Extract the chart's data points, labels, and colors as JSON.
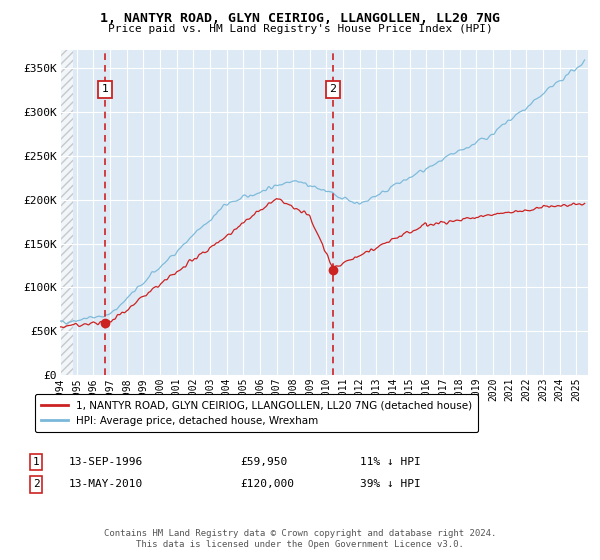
{
  "title": "1, NANTYR ROAD, GLYN CEIRIOG, LLANGOLLEN, LL20 7NG",
  "subtitle": "Price paid vs. HM Land Registry's House Price Index (HPI)",
  "hpi_color": "#7ab8d9",
  "price_color": "#cc2222",
  "marker_color": "#cc2222",
  "annotation_color": "#cc2222",
  "background_color": "#ddeaf5",
  "ylim": [
    0,
    370000
  ],
  "yticks": [
    0,
    50000,
    100000,
    150000,
    200000,
    250000,
    300000,
    350000
  ],
  "ytick_labels": [
    "£0",
    "£50K",
    "£100K",
    "£150K",
    "£200K",
    "£250K",
    "£300K",
    "£350K"
  ],
  "xlim_start": 1994.0,
  "xlim_end": 2025.7,
  "xticks": [
    1994,
    1995,
    1996,
    1997,
    1998,
    1999,
    2000,
    2001,
    2002,
    2003,
    2004,
    2005,
    2006,
    2007,
    2008,
    2009,
    2010,
    2011,
    2012,
    2013,
    2014,
    2015,
    2016,
    2017,
    2018,
    2019,
    2020,
    2021,
    2022,
    2023,
    2024,
    2025
  ],
  "sale1_x": 1996.7,
  "sale1_y": 59950,
  "sale1_label": "1",
  "sale1_date": "13-SEP-1996",
  "sale1_price": "£59,950",
  "sale1_hpi": "11% ↓ HPI",
  "sale2_x": 2010.37,
  "sale2_y": 120000,
  "sale2_label": "2",
  "sale2_date": "13-MAY-2010",
  "sale2_price": "£120,000",
  "sale2_hpi": "39% ↓ HPI",
  "legend_line1": "1, NANTYR ROAD, GLYN CEIRIOG, LLANGOLLEN, LL20 7NG (detached house)",
  "legend_line2": "HPI: Average price, detached house, Wrexham",
  "footer": "Contains HM Land Registry data © Crown copyright and database right 2024.\nThis data is licensed under the Open Government Licence v3.0."
}
